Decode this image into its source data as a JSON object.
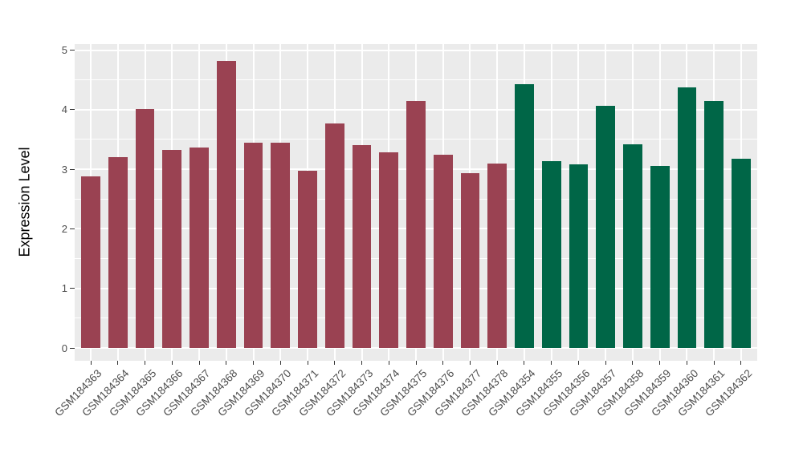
{
  "chart_data": {
    "type": "bar",
    "title": "",
    "xlabel": "",
    "ylabel": "Expression Level",
    "ylim": [
      0,
      5
    ],
    "yticks": [
      0,
      1,
      2,
      3,
      4,
      5
    ],
    "y_minor_ticks": [
      0.5,
      1.5,
      2.5,
      3.5,
      4.5
    ],
    "grid": "major and minor horizontal white lines, vertical major lines at category centers, gray panel",
    "legend_position": "none",
    "categories": [
      "GSM184363",
      "GSM184364",
      "GSM184365",
      "GSM184366",
      "GSM184367",
      "GSM184368",
      "GSM184369",
      "GSM184370",
      "GSM184371",
      "GSM184372",
      "GSM184373",
      "GSM184374",
      "GSM184375",
      "GSM184376",
      "GSM184377",
      "GSM184378",
      "GSM184354",
      "GSM184355",
      "GSM184356",
      "GSM184357",
      "GSM184358",
      "GSM184359",
      "GSM184360",
      "GSM184361",
      "GSM184362"
    ],
    "values": [
      2.88,
      3.2,
      4.01,
      3.33,
      3.36,
      4.82,
      3.44,
      3.45,
      2.97,
      3.77,
      3.41,
      3.28,
      4.14,
      3.24,
      2.94,
      3.1,
      4.43,
      3.14,
      3.08,
      4.06,
      3.42,
      3.06,
      4.37,
      4.14,
      3.18
    ],
    "groups": [
      {
        "color": "#9A4252",
        "start": 0,
        "count": 16
      },
      {
        "color": "#006647",
        "start": 16,
        "count": 9
      }
    ]
  },
  "colors": {
    "panel_background": "#EBEBEB",
    "gridline": "#FFFFFF",
    "axis_text": "#4D4D4D",
    "axis_title": "#000000",
    "tick_mark": "#333333",
    "bar_group_1": "#9A4252",
    "bar_group_2": "#006647"
  }
}
